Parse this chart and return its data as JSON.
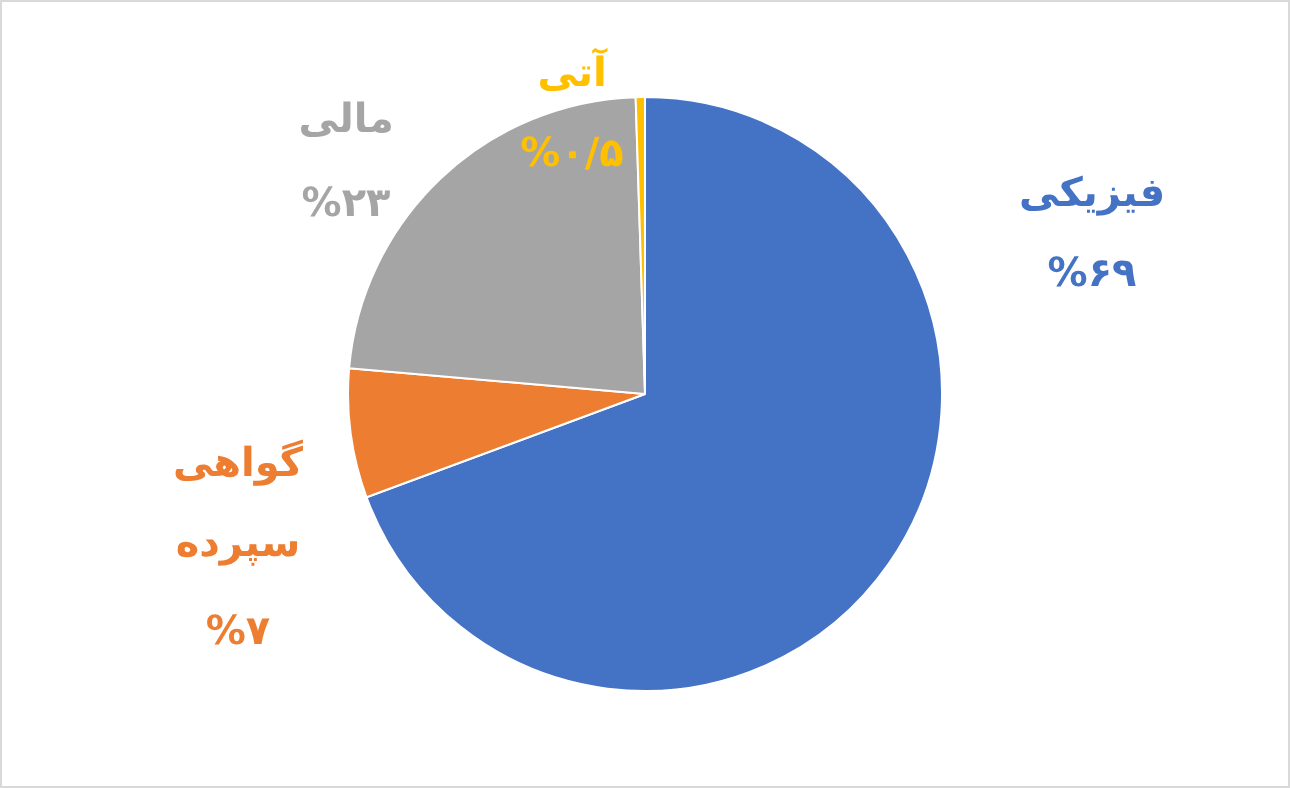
{
  "chart_data": {
    "type": "pie",
    "categories": [
      "فیزیکی",
      "گواهی سپرده",
      "مالی",
      "آتی"
    ],
    "values": [
      69,
      7,
      23,
      0.5
    ],
    "colors": [
      "#4472c4",
      "#ed7d31",
      "#a5a5a5",
      "#ffc000"
    ],
    "value_labels": [
      "%۶۹",
      "%۷",
      "%۲۳",
      "%۰/۵"
    ],
    "legend": false
  }
}
